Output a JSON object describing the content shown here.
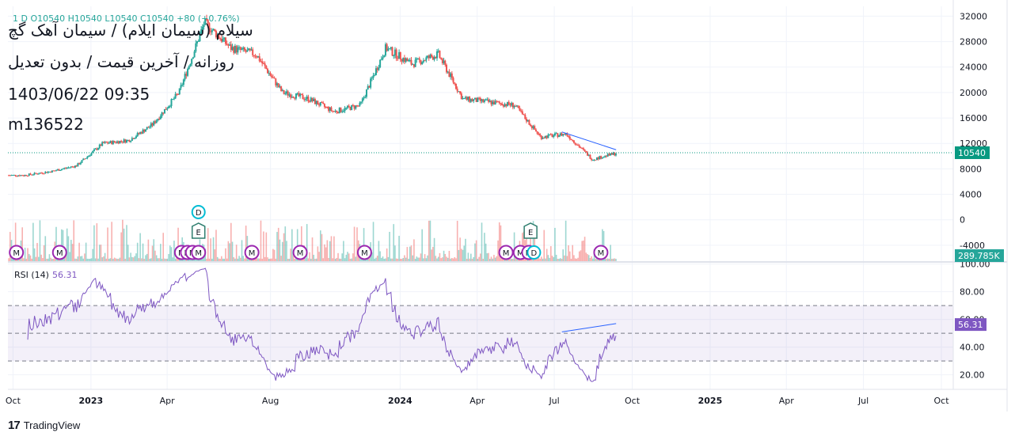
{
  "header": {
    "ohlc_text": "1   D  O10540  H10540  L10540  C10540  +80 (+0.76%)",
    "title": "سیلام (سیمان ایلام) / سیمان آهک گچ",
    "subtitle": "روزانه / آخرین قیمت / بدون تعدیل",
    "datetime": "1403/06/22 09:35",
    "code": "m136522"
  },
  "footer": {
    "brand": "TradingView"
  },
  "colors": {
    "up": "#26a69a",
    "down": "#ef5350",
    "rsi": "#7e57c2",
    "trendline": "#2962ff",
    "last_price": "#089981",
    "earnings": "#2e7d6e",
    "dividend": "#00bcd4",
    "meeting": "#9c27b0"
  },
  "chart_data": {
    "type": "candlestick",
    "x_ticks": [
      "Oct",
      "2023",
      "Apr",
      "Aug",
      "2024",
      "Apr",
      "Jul",
      "Oct",
      "2025",
      "Apr",
      "Jul",
      "Oct"
    ],
    "price_axis": {
      "ticks": [
        32000,
        28000,
        24000,
        20000,
        16000,
        12000,
        8000,
        4000,
        0,
        -4000
      ],
      "last_price": 10540,
      "last_price_label": "10540"
    },
    "volume": {
      "last_label": "289.785K"
    },
    "price_series": [
      {
        "date": "2022-10",
        "close": 7000
      },
      {
        "date": "2022-11",
        "close": 7600
      },
      {
        "date": "2022-12",
        "close": 8500
      },
      {
        "date": "2023-01",
        "close": 12000
      },
      {
        "date": "2023-02",
        "close": 12500
      },
      {
        "date": "2023-03",
        "close": 15000
      },
      {
        "date": "2023-04",
        "close": 20000
      },
      {
        "date": "2023-05",
        "close": 31000
      },
      {
        "date": "2023-06",
        "close": 27000
      },
      {
        "date": "2023-07",
        "close": 26000
      },
      {
        "date": "2023-08",
        "close": 20000
      },
      {
        "date": "2023-09",
        "close": 19000
      },
      {
        "date": "2023-10",
        "close": 17000
      },
      {
        "date": "2023-11",
        "close": 18000
      },
      {
        "date": "2023-12",
        "close": 27000
      },
      {
        "date": "2024-01",
        "close": 24500
      },
      {
        "date": "2024-02",
        "close": 26000
      },
      {
        "date": "2024-03",
        "close": 19000
      },
      {
        "date": "2024-04",
        "close": 18500
      },
      {
        "date": "2024-05",
        "close": 18000
      },
      {
        "date": "2024-06",
        "close": 13000
      },
      {
        "date": "2024-07",
        "close": 13500
      },
      {
        "date": "2024-08",
        "close": 9500
      },
      {
        "date": "2024-09",
        "close": 10540
      }
    ],
    "rsi": {
      "label": "RSI (14)",
      "value_label": "56.31",
      "period": 14,
      "ticks": [
        "100.00",
        "80.00",
        "60.00",
        "40.00",
        "20.00"
      ],
      "levels": [
        30,
        50,
        70
      ]
    },
    "events": [
      {
        "type": "M",
        "date": "2022-10-05"
      },
      {
        "type": "M",
        "date": "2022-11-25"
      },
      {
        "type": "M",
        "date": "2023-04-18"
      },
      {
        "type": "M",
        "date": "2023-04-25"
      },
      {
        "type": "M",
        "date": "2023-05-01"
      },
      {
        "type": "M",
        "date": "2023-05-08"
      },
      {
        "type": "M",
        "date": "2023-07-10"
      },
      {
        "type": "M",
        "date": "2023-09-05"
      },
      {
        "type": "M",
        "date": "2023-11-20"
      },
      {
        "type": "M",
        "date": "2024-05-05"
      },
      {
        "type": "M",
        "date": "2024-05-22"
      },
      {
        "type": "M",
        "date": "2024-06-01"
      },
      {
        "type": "M",
        "date": "2024-08-25"
      },
      {
        "type": "E",
        "date": "2023-05-08"
      },
      {
        "type": "E",
        "date": "2024-06-03"
      },
      {
        "type": "D",
        "date": "2023-05-08"
      },
      {
        "type": "D",
        "date": "2024-06-07"
      }
    ]
  }
}
